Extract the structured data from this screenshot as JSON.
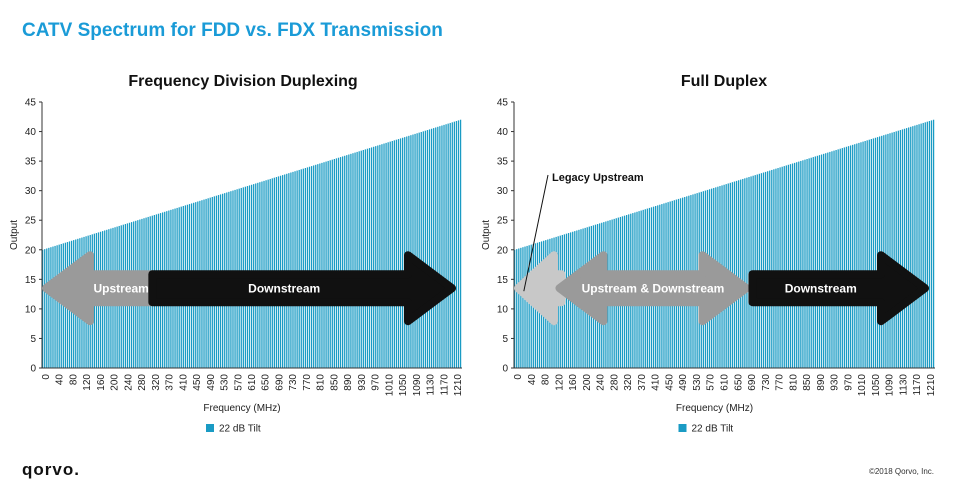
{
  "page": {
    "title": "CATV Spectrum for FDD vs. FDX Transmission",
    "logo": "qorvo.",
    "copyright": "©2018 Qorvo, Inc."
  },
  "colors": {
    "title": "#1a9bd7",
    "bar": "#1a9bc4",
    "arrow_light": "#c8c8c8",
    "arrow_mid": "#9a9a9a",
    "arrow_dark": "#111111"
  },
  "chart_data": [
    {
      "type": "bar",
      "title": "Frequency Division Duplexing",
      "xlabel": "Frequency (MHz)",
      "ylabel": "Output",
      "ylim": [
        0,
        45
      ],
      "yticks": [
        0,
        5,
        10,
        15,
        20,
        25,
        30,
        35,
        40,
        45
      ],
      "x_range_mhz": [
        0,
        1218
      ],
      "x_step_mhz": 6,
      "xtick_labels": [
        "0",
        "40",
        "80",
        "120",
        "160",
        "200",
        "240",
        "280",
        "320",
        "370",
        "410",
        "450",
        "490",
        "530",
        "570",
        "610",
        "650",
        "690",
        "730",
        "770",
        "810",
        "850",
        "890",
        "930",
        "970",
        "1010",
        "1050",
        "1090",
        "1130",
        "1170",
        "1210"
      ],
      "bar_value_start": 20.0,
      "bar_value_end": 42.0,
      "legend": [
        {
          "name": "22 dB Tilt"
        }
      ],
      "legend_placement": "bottom-center",
      "grid": false,
      "annotations": [
        {
          "label": "Upstream",
          "kind": "left-arrow",
          "from_mhz": 0,
          "to_mhz": 320,
          "color": "arrow_mid",
          "text_color": "#ffffff"
        },
        {
          "label": "Downstream",
          "kind": "right-arrow",
          "from_mhz": 320,
          "to_mhz": 1218,
          "color": "arrow_dark",
          "text_color": "#ffffff"
        }
      ]
    },
    {
      "type": "bar",
      "title": "Full Duplex",
      "xlabel": "Frequency (MHz)",
      "ylabel": "Output",
      "ylim": [
        0,
        45
      ],
      "yticks": [
        0,
        5,
        10,
        15,
        20,
        25,
        30,
        35,
        40,
        45
      ],
      "x_range_mhz": [
        0,
        1218
      ],
      "x_step_mhz": 6,
      "xtick_labels": [
        "0",
        "40",
        "80",
        "120",
        "160",
        "200",
        "240",
        "280",
        "320",
        "370",
        "410",
        "450",
        "490",
        "530",
        "570",
        "610",
        "650",
        "690",
        "730",
        "770",
        "810",
        "850",
        "890",
        "930",
        "970",
        "1010",
        "1050",
        "1090",
        "1130",
        "1170",
        "1210"
      ],
      "bar_value_start": 20.0,
      "bar_value_end": 42.0,
      "legend": [
        {
          "name": "22 dB Tilt"
        }
      ],
      "legend_placement": "bottom-center",
      "grid": false,
      "annotations": [
        {
          "label": "",
          "kind": "left-arrow",
          "from_mhz": 0,
          "to_mhz": 120,
          "color": "arrow_light",
          "text_color": "#ffffff"
        },
        {
          "label": "Upstream & Downstream",
          "kind": "double-arrow",
          "from_mhz": 120,
          "to_mhz": 690,
          "color": "arrow_mid",
          "text_color": "#ffffff"
        },
        {
          "label": "Downstream",
          "kind": "right-arrow",
          "from_mhz": 690,
          "to_mhz": 1218,
          "color": "arrow_dark",
          "text_color": "#ffffff"
        }
      ],
      "callout": {
        "label": "Legacy Upstream"
      }
    }
  ]
}
